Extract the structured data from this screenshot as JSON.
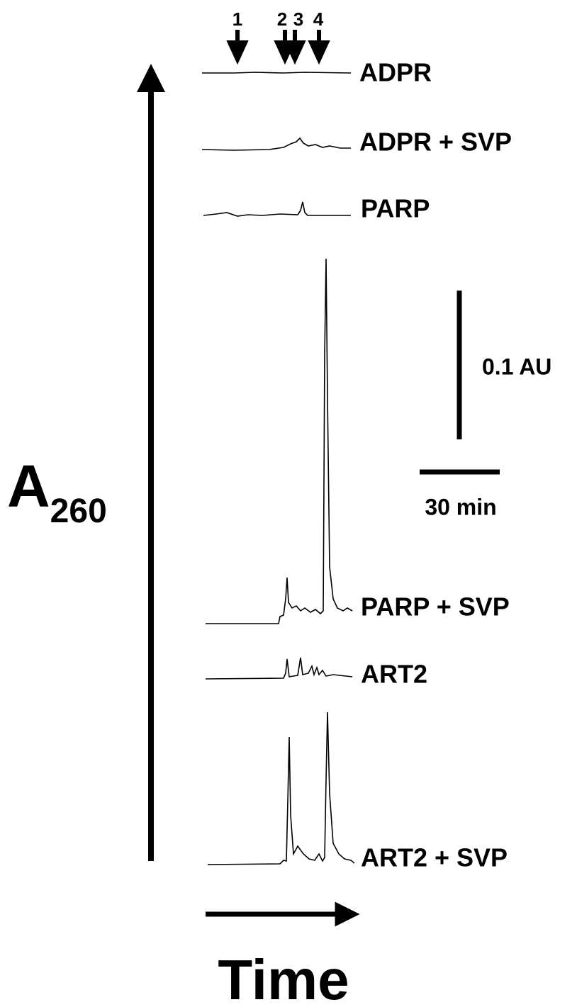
{
  "axis_labels": {
    "y": {
      "main": "A",
      "subscript": "260"
    },
    "x": "Time"
  },
  "peak_markers": [
    "1",
    "2",
    "3",
    "4"
  ],
  "traces": [
    "ADPR",
    "ADPR + SVP",
    "PARP",
    "PARP + SVP",
    "ART2",
    "ART2 + SVP"
  ],
  "scale_bars": {
    "vertical": "0.1 AU",
    "horizontal": "30 min"
  }
}
